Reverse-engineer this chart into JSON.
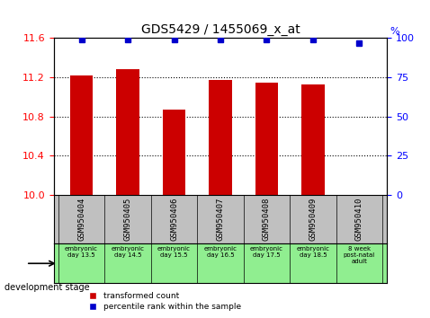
{
  "title": "GDS5429 / 1455069_x_at",
  "samples": [
    "GSM950404",
    "GSM950405",
    "GSM950406",
    "GSM950407",
    "GSM950408",
    "GSM950409",
    "GSM950410"
  ],
  "bar_values": [
    11.22,
    11.28,
    10.87,
    11.17,
    11.15,
    11.13,
    10.0
  ],
  "percentile_values": [
    99,
    99,
    99,
    99,
    99,
    99,
    97
  ],
  "dev_stage_labels": [
    "embryonic\nday 13.5",
    "embryonic\nday 14.5",
    "embryonic\nday 15.5",
    "embryonic\nday 16.5",
    "embryonic\nday 17.5",
    "embryonic\nday 18.5",
    "8 week\npost-natal\nadult"
  ],
  "dev_stage_colors": [
    "#90EE90",
    "#90EE90",
    "#90EE90",
    "#90EE90",
    "#90EE90",
    "#90EE90",
    "#90EE90"
  ],
  "ylim_left": [
    10.0,
    11.6
  ],
  "ylim_right": [
    0,
    100
  ],
  "yticks_left": [
    10.0,
    10.4,
    10.8,
    11.2,
    11.6
  ],
  "yticks_right": [
    0,
    25,
    50,
    75,
    100
  ],
  "bar_color": "#CC0000",
  "dot_color": "#0000CC",
  "bar_width": 0.5,
  "grid_linestyle": "dotted",
  "xlabel_area_color": "#C0C0C0",
  "dev_stage_color": "#90EE90"
}
